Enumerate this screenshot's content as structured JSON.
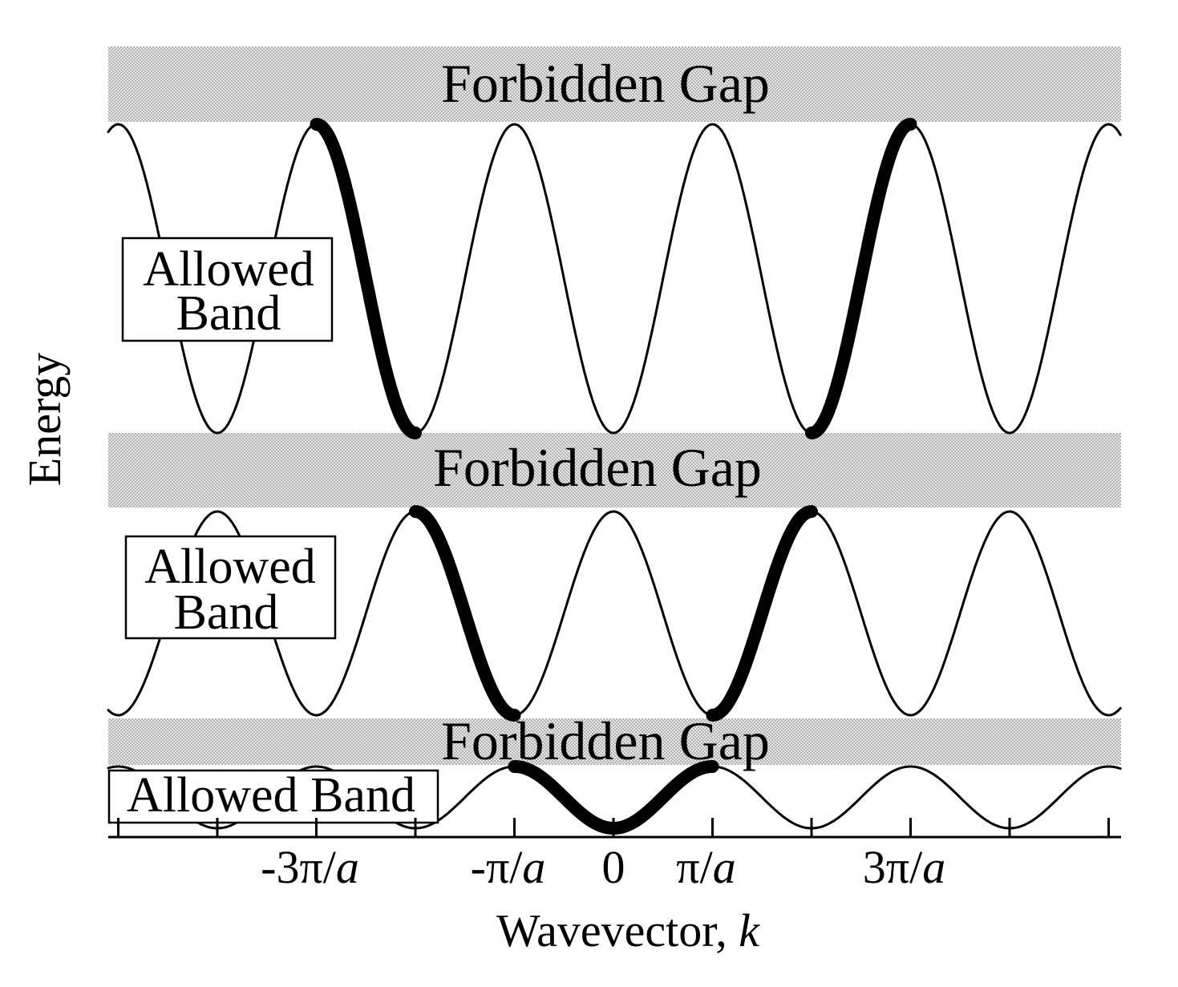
{
  "axes": {
    "y_title": "Energy",
    "x_title_prefix": "Wavevector, ",
    "x_title_var": "k",
    "x_ticks": [
      {
        "k": -3,
        "num": "-3π/",
        "den": "a"
      },
      {
        "k": -1,
        "num": "-π/",
        "den": "a"
      },
      {
        "k": 0,
        "num": "0",
        "den": ""
      },
      {
        "k": 1,
        "num": "π/",
        "den": "a"
      },
      {
        "k": 3,
        "num": "3π/",
        "den": "a"
      }
    ]
  },
  "gaps": [
    {
      "label": "Forbidden Gap"
    },
    {
      "label": "Forbidden Gap"
    },
    {
      "label": "Forbidden Gap"
    }
  ],
  "bands": [
    {
      "label_lines": [
        "Allowed",
        "Band"
      ]
    },
    {
      "label_lines": [
        "Allowed",
        "Band"
      ]
    },
    {
      "label_lines": [
        "Allowed Band"
      ]
    }
  ],
  "colors": {
    "gap_fill": "#d6d6d6",
    "curve": "#000000",
    "background": "#ffffff"
  }
}
